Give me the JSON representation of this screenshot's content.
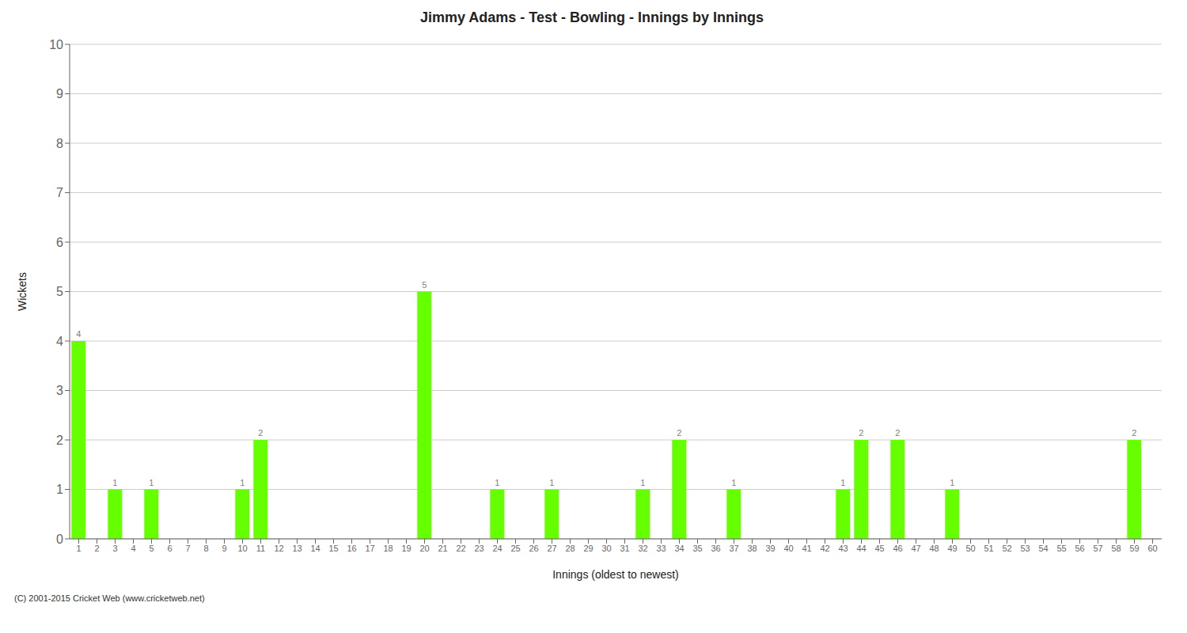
{
  "chart_data": {
    "type": "bar",
    "title": "Jimmy Adams - Test - Bowling - Innings by Innings",
    "xlabel": "Innings (oldest to newest)",
    "ylabel": "Wickets",
    "annotations": [
      "(C) 2001-2015 Cricket Web (www.cricketweb.net)"
    ],
    "categories": [
      1,
      2,
      3,
      4,
      5,
      6,
      7,
      8,
      9,
      10,
      11,
      12,
      13,
      14,
      15,
      16,
      17,
      18,
      19,
      20,
      21,
      22,
      23,
      24,
      25,
      26,
      27,
      28,
      29,
      30,
      31,
      32,
      33,
      34,
      35,
      36,
      37,
      38,
      39,
      40,
      41,
      42,
      43,
      44,
      45,
      46,
      47,
      48,
      49,
      50,
      51,
      52,
      53,
      54,
      55,
      56,
      57,
      58,
      59,
      60
    ],
    "values": [
      4,
      0,
      1,
      0,
      1,
      0,
      0,
      0,
      0,
      1,
      2,
      0,
      0,
      0,
      0,
      0,
      0,
      0,
      0,
      5,
      0,
      0,
      0,
      1,
      0,
      0,
      1,
      0,
      0,
      0,
      0,
      1,
      0,
      2,
      0,
      0,
      1,
      0,
      0,
      0,
      0,
      0,
      1,
      2,
      0,
      2,
      0,
      0,
      1,
      0,
      0,
      0,
      0,
      0,
      0,
      0,
      0,
      0,
      2,
      0
    ],
    "color": "#66ff00",
    "ylim": [
      0,
      10
    ],
    "yticks": [
      0,
      1,
      2,
      3,
      4,
      5,
      6,
      7,
      8,
      9,
      10
    ],
    "grid": true,
    "data_labels": true
  }
}
